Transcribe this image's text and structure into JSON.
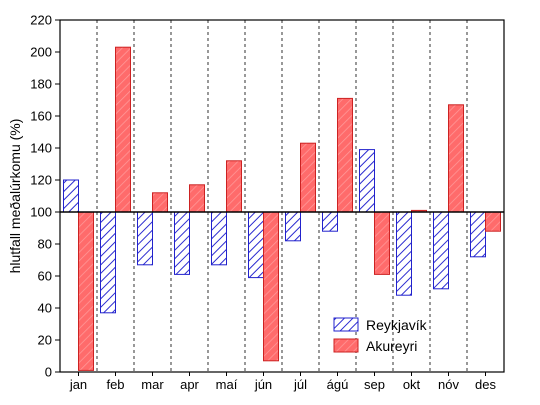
{
  "chart_data": {
    "type": "bar",
    "ylabel": "hlutfall meðalúrkomu (%)",
    "xlabel": "",
    "ylim": [
      0,
      220
    ],
    "yticks": [
      0,
      20,
      40,
      60,
      80,
      100,
      120,
      140,
      160,
      180,
      200,
      220
    ],
    "baseline": 100,
    "grid": "vertical dashed separators between months",
    "legend_position": "bottom-right",
    "categories": [
      "jan",
      "feb",
      "mar",
      "apr",
      "maí",
      "jún",
      "júl",
      "ágú",
      "sep",
      "okt",
      "nóv",
      "des"
    ],
    "series": [
      {
        "name": "Reykjavík",
        "color": "#2222cc",
        "fill": "hatched blue",
        "values": [
          120,
          37,
          67,
          61,
          67,
          59,
          82,
          88,
          139,
          48,
          52,
          72
        ]
      },
      {
        "name": "Akureyri",
        "color": "#ff5a5a",
        "fill": "hatched red",
        "values": [
          1,
          203,
          112,
          117,
          132,
          7,
          143,
          171,
          61,
          101,
          167,
          88
        ]
      }
    ]
  }
}
